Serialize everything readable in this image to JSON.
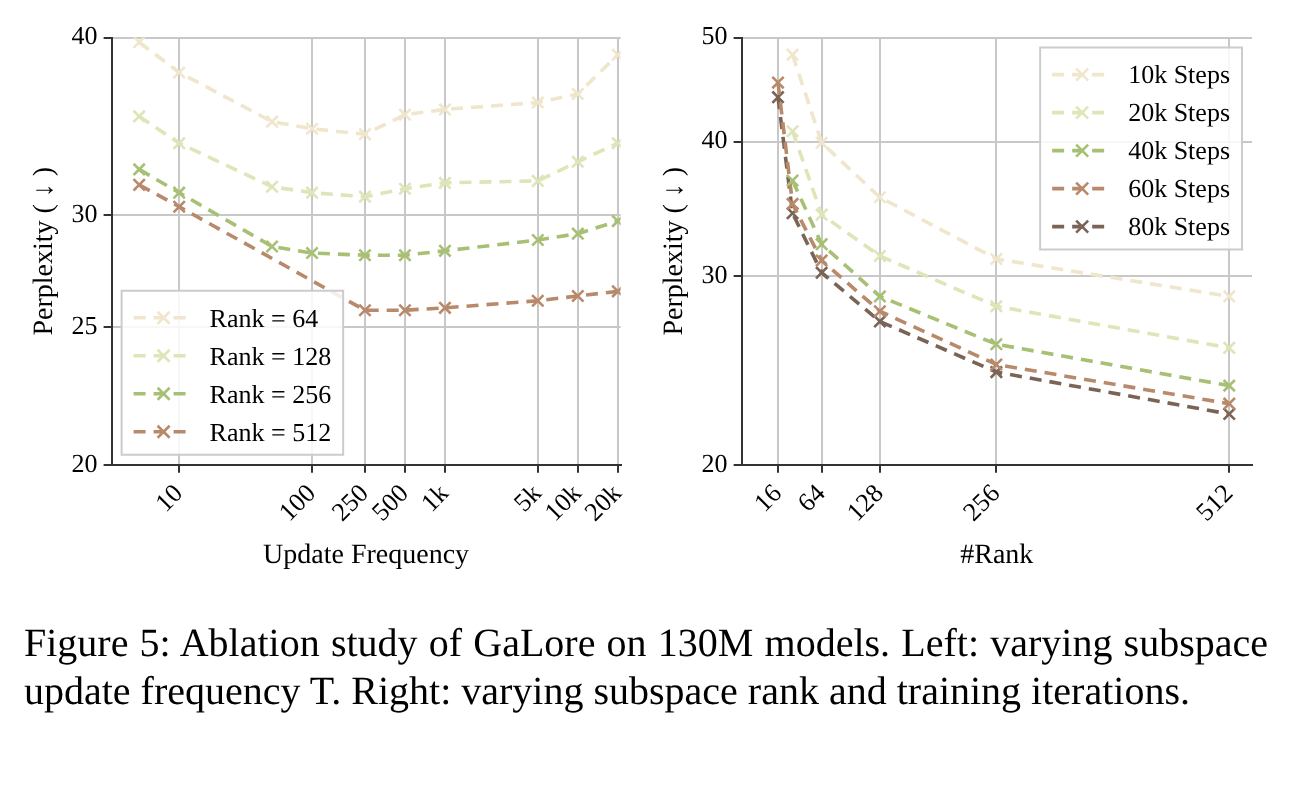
{
  "chart_data": [
    {
      "type": "line",
      "xlabel": "Update Frequency",
      "ylabel": "Perplexity ( ↓ )",
      "log": "xy",
      "x": [
        5,
        10,
        50,
        100,
        250,
        500,
        1000,
        5000,
        10000,
        20000
      ],
      "xlim": [
        3.1,
        21000
      ],
      "xticks": [
        10,
        100,
        250,
        500,
        {
          "value": 1000,
          "label": "1k"
        },
        {
          "value": 5000,
          "label": "5k"
        },
        {
          "value": 10000,
          "label": "10k"
        },
        {
          "value": 20000,
          "label": "20k"
        }
      ],
      "ylim": [
        20,
        40
      ],
      "yticks": [
        20,
        25,
        30,
        40
      ],
      "grid": true,
      "legend": "bottom left",
      "marker": "cross",
      "line_style": "dashed",
      "series": [
        {
          "name": "Rank = 64",
          "color": "#efe6cc",
          "values": [
            39.7,
            37.8,
            34.9,
            34.5,
            34.2,
            35.3,
            35.6,
            36.0,
            36.5,
            38.9
          ]
        },
        {
          "name": "Rank = 128",
          "color": "#dfe5b8",
          "values": [
            35.2,
            33.7,
            31.4,
            31.1,
            30.9,
            31.3,
            31.6,
            31.7,
            32.7,
            33.7
          ]
        },
        {
          "name": "Rank = 256",
          "color": "#a8c074",
          "values": [
            32.3,
            31.1,
            28.5,
            28.2,
            28.1,
            28.1,
            28.3,
            28.8,
            29.1,
            29.7
          ]
        },
        {
          "name": "Rank = 512",
          "color": "#b8896a",
          "values": [
            31.5,
            30.4,
            null,
            null,
            25.7,
            25.7,
            25.8,
            26.1,
            26.3,
            26.5
          ]
        }
      ],
      "annotations": [
        "Figure 5: Ablation study of GaLore on 130M models. Left: varying subspace update frequency T. Right: varying subspace rank and training iterations."
      ]
    },
    {
      "type": "line",
      "xlabel": "#Rank",
      "ylabel": "Perplexity ( ↓ )",
      "log": "y",
      "x": [
        16,
        32,
        64,
        128,
        256,
        512
      ],
      "xlim": [
        -24,
        537
      ],
      "xticks": [
        16,
        64,
        128,
        256,
        512
      ],
      "ylim": [
        20,
        50
      ],
      "yticks": [
        20,
        30,
        40,
        50
      ],
      "grid": true,
      "legend": "top right",
      "marker": "cross",
      "line_style": "dashed",
      "series": [
        {
          "name": "10k Steps",
          "color": "#efe6cc",
          "values": [
            null,
            48.2,
            39.9,
            35.5,
            31.1,
            28.7
          ]
        },
        {
          "name": "20k Steps",
          "color": "#dfe5b8",
          "values": [
            null,
            40.9,
            34.2,
            31.3,
            28.1,
            25.7
          ]
        },
        {
          "name": "40k Steps",
          "color": "#a8c074",
          "values": [
            null,
            36.8,
            32.1,
            28.7,
            25.9,
            23.7
          ]
        },
        {
          "name": "60k Steps",
          "color": "#b8896a",
          "values": [
            45.4,
            35.0,
            31.0,
            27.8,
            24.8,
            22.8
          ]
        },
        {
          "name": "80k Steps",
          "color": "#7a6456",
          "values": [
            44.0,
            34.3,
            30.2,
            27.2,
            24.4,
            22.3
          ]
        }
      ]
    }
  ]
}
